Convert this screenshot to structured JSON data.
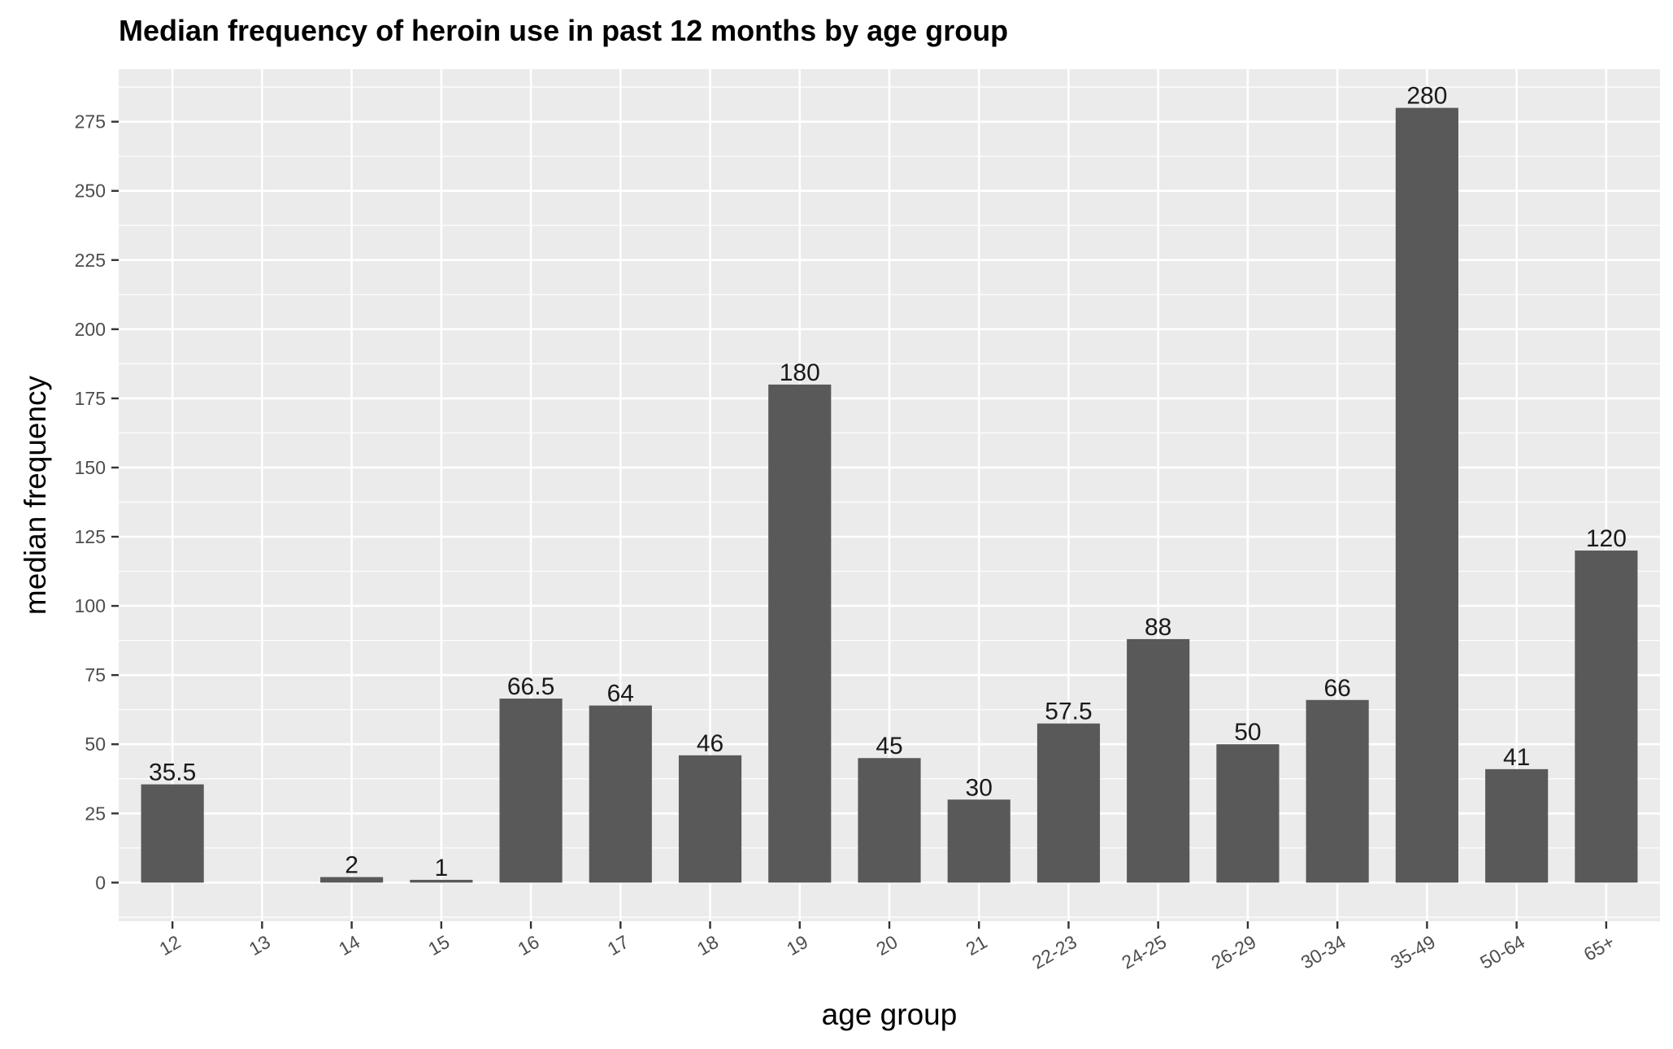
{
  "chart_data": {
    "type": "bar",
    "title": "Median frequency of heroin use in past 12 months by age group",
    "xlabel": "age group",
    "ylabel": "median frequency",
    "categories": [
      "12",
      "13",
      "14",
      "15",
      "16",
      "17",
      "18",
      "19",
      "20",
      "21",
      "22-23",
      "24-25",
      "26-29",
      "30-34",
      "35-49",
      "50-64",
      "65+"
    ],
    "values": [
      35.5,
      null,
      2,
      1,
      66.5,
      64,
      46,
      180,
      45,
      30,
      57.5,
      88,
      50,
      66,
      280,
      41,
      120
    ],
    "data_labels": [
      "35.5",
      "",
      "2",
      "1",
      "66.5",
      "64",
      "46",
      "180",
      "45",
      "30",
      "57.5",
      "88",
      "50",
      "66",
      "280",
      "41",
      "120"
    ],
    "yticks": [
      0,
      25,
      50,
      75,
      100,
      125,
      150,
      175,
      200,
      225,
      250,
      275
    ],
    "ylim": [
      -14,
      294
    ],
    "grid": true,
    "legend": "none",
    "colors": {
      "bar": "#595959",
      "panel": "#ebebeb",
      "grid": "#ffffff"
    }
  }
}
